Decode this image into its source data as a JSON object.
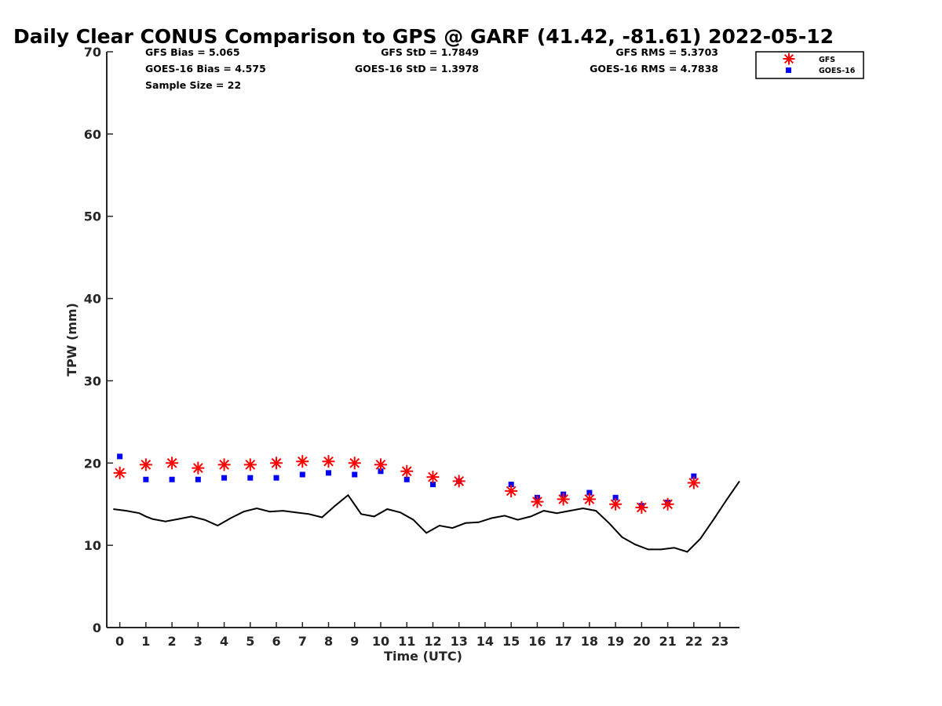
{
  "chart_data": {
    "type": "scatter",
    "title": "Daily Clear CONUS Comparison to GPS @ GARF (41.42, -81.61) 2022-05-12",
    "xlabel": "Time (UTC)",
    "ylabel": "TPW (mm)",
    "xlim": [
      -0.5,
      23.75
    ],
    "ylim": [
      0,
      70
    ],
    "x_ticks": [
      0,
      1,
      2,
      3,
      4,
      5,
      6,
      7,
      8,
      9,
      10,
      11,
      12,
      13,
      14,
      15,
      16,
      17,
      18,
      19,
      20,
      21,
      22,
      23
    ],
    "y_ticks": [
      0,
      10,
      20,
      30,
      40,
      50,
      60,
      70
    ],
    "grid": false,
    "legend_position": "top-right",
    "stats": [
      {
        "text": "GFS Bias = 5.065"
      },
      {
        "text": "GOES-16 Bias = 4.575"
      },
      {
        "text": "Sample Size = 22"
      },
      {
        "text": "GFS StD = 1.7849"
      },
      {
        "text": "GOES-16 StD = 1.3978"
      },
      {
        "text": "GFS RMS = 5.3703"
      },
      {
        "text": "GOES-16 RMS = 4.7838"
      }
    ],
    "series": [
      {
        "name": "GFS",
        "marker": "asterisk",
        "color": "#ff0000",
        "x": [
          0,
          1,
          2,
          3,
          4,
          5,
          6,
          7,
          8,
          9,
          10,
          11,
          12,
          13,
          15,
          16,
          17,
          18,
          19,
          20,
          21,
          22
        ],
        "y": [
          18.8,
          19.8,
          20.0,
          19.4,
          19.8,
          19.8,
          20.0,
          20.2,
          20.2,
          20.0,
          19.8,
          19.0,
          18.3,
          17.8,
          16.6,
          15.3,
          15.6,
          15.6,
          15.0,
          14.6,
          15.0,
          17.6
        ]
      },
      {
        "name": "GOES-16",
        "marker": "square",
        "color": "#0000ff",
        "x": [
          0,
          1,
          2,
          3,
          4,
          5,
          6,
          7,
          8,
          9,
          10,
          11,
          12,
          13,
          15,
          16,
          17,
          18,
          19,
          20,
          21,
          22
        ],
        "y": [
          20.8,
          18.0,
          18.0,
          18.0,
          18.2,
          18.2,
          18.2,
          18.6,
          18.8,
          18.6,
          19.0,
          18.0,
          17.4,
          17.8,
          17.4,
          15.8,
          16.2,
          16.4,
          15.8,
          14.8,
          15.2,
          18.4
        ]
      },
      {
        "marker": "line",
        "color": "#000000",
        "x": [
          -0.25,
          0.25,
          0.75,
          1.0,
          1.25,
          1.75,
          2.25,
          2.75,
          3.25,
          3.75,
          4.25,
          4.75,
          5.25,
          5.75,
          6.25,
          6.75,
          7.25,
          7.75,
          8.25,
          8.75,
          9.25,
          9.75,
          10.25,
          10.75,
          11.25,
          11.75,
          12.25,
          12.75,
          13.25,
          13.75,
          14.25,
          14.75,
          15.25,
          15.75,
          16.25,
          16.75,
          17.25,
          17.75,
          18.25,
          18.75,
          19.25,
          19.75,
          20.25,
          20.75,
          21.25,
          21.75,
          22.25,
          22.75,
          23.25,
          23.75
        ],
        "y": [
          14.4,
          14.2,
          13.9,
          13.5,
          13.2,
          12.9,
          13.2,
          13.5,
          13.1,
          12.4,
          13.3,
          14.1,
          14.5,
          14.1,
          14.2,
          14.0,
          13.8,
          13.4,
          14.8,
          16.1,
          13.8,
          13.5,
          14.4,
          14.0,
          13.1,
          11.5,
          12.4,
          12.1,
          12.7,
          12.8,
          13.3,
          13.6,
          13.1,
          13.5,
          14.2,
          13.9,
          14.2,
          14.5,
          14.2,
          12.7,
          11.0,
          10.1,
          9.5,
          9.5,
          9.7,
          9.2,
          10.8,
          13.1,
          15.5,
          17.8
        ]
      }
    ]
  }
}
